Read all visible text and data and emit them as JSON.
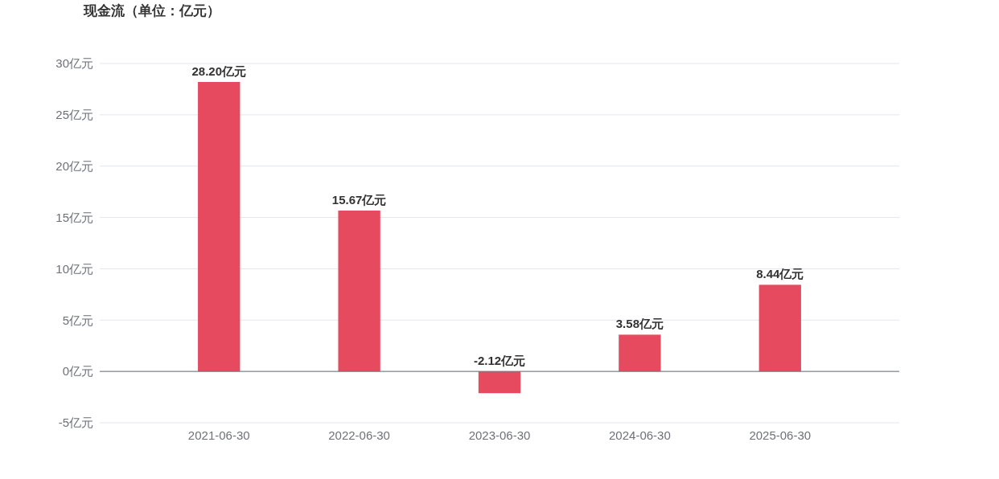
{
  "chart_data": {
    "type": "bar",
    "title": "现金流（单位：亿元）",
    "categories": [
      "2021-06-30",
      "2022-06-30",
      "2023-06-30",
      "2024-06-30",
      "2025-06-30"
    ],
    "values": [
      28.2,
      15.67,
      -2.12,
      3.58,
      8.44
    ],
    "value_labels": [
      "28.20亿元",
      "15.67亿元",
      "-2.12亿元",
      "3.58亿元",
      "8.44亿元"
    ],
    "color": "#e64a5e",
    "ylim": [
      -5,
      30
    ],
    "yticks": [
      {
        "value": -5,
        "label": "-5亿元"
      },
      {
        "value": 0,
        "label": "0亿元"
      },
      {
        "value": 5,
        "label": "5亿元"
      },
      {
        "value": 10,
        "label": "10亿元"
      },
      {
        "value": 15,
        "label": "15亿元"
      },
      {
        "value": 20,
        "label": "20亿元"
      },
      {
        "value": 25,
        "label": "25亿元"
      },
      {
        "value": 30,
        "label": "30亿元"
      }
    ],
    "grid": "y"
  }
}
